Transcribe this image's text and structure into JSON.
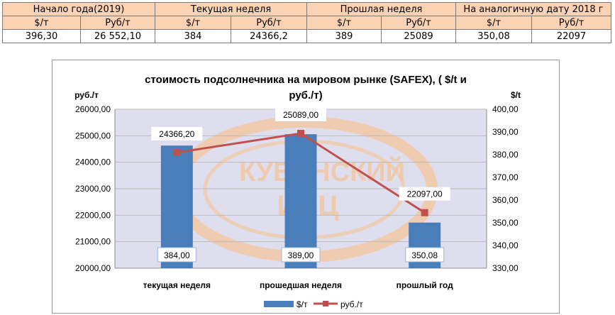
{
  "table": {
    "headers": [
      "Начало года(2019)",
      "Текущая неделя",
      "Прошлая неделя",
      "На аналогичную дату 2018 г"
    ],
    "units": [
      "$/т",
      "Руб/т",
      "$/т",
      "Руб/т",
      "$/т",
      "Руб/т",
      "$/т",
      "Руб/т"
    ],
    "values": [
      "396,30",
      "26 552,10",
      "384",
      "24366,2",
      "389",
      "25089",
      "350,08",
      "22097"
    ]
  },
  "chart_data": {
    "type": "bar",
    "title_line1": "стоимость подсолнечника на мировом рынке (SAFEX), ( $/t и",
    "title_line2": "руб./т)",
    "ylabel_left": "руб./т",
    "ylabel_right": "$/t",
    "watermark_line1": "КУБАНСКИЙ",
    "watermark_line2": "ИАЦ",
    "categories": [
      "текущая неделя",
      "прошедшая неделя",
      "прошлый год"
    ],
    "series": [
      {
        "name": "$/т",
        "kind": "bar",
        "axis": "right",
        "color": "#4a7ebb",
        "values": [
          384.0,
          389.0,
          350.08
        ],
        "labels": [
          "384,00",
          "389,00",
          "350,08"
        ]
      },
      {
        "name": "руб./т",
        "kind": "line",
        "axis": "left",
        "color": "#c0504d",
        "values": [
          24366.2,
          25089.0,
          22097.0
        ],
        "labels": [
          "24366,20",
          "25089,00",
          "22097,00"
        ]
      }
    ],
    "left_axis": {
      "min": 20000,
      "max": 26000,
      "ticks": [
        20000,
        21000,
        22000,
        23000,
        24000,
        25000,
        26000
      ],
      "tick_labels": [
        "20000,00",
        "21000,00",
        "22000,00",
        "23000,00",
        "24000,00",
        "25000,00",
        "26000,00"
      ]
    },
    "right_axis": {
      "min": 330,
      "max": 400,
      "ticks": [
        330,
        340,
        350,
        360,
        370,
        380,
        390,
        400
      ],
      "tick_labels": [
        "330,00",
        "340,00",
        "350,00",
        "360,00",
        "370,00",
        "380,00",
        "390,00",
        "400,00"
      ]
    },
    "grid": true,
    "legend": "bottom",
    "plot_background": "#dedeee",
    "watermark_color": "#f3c7a0"
  }
}
